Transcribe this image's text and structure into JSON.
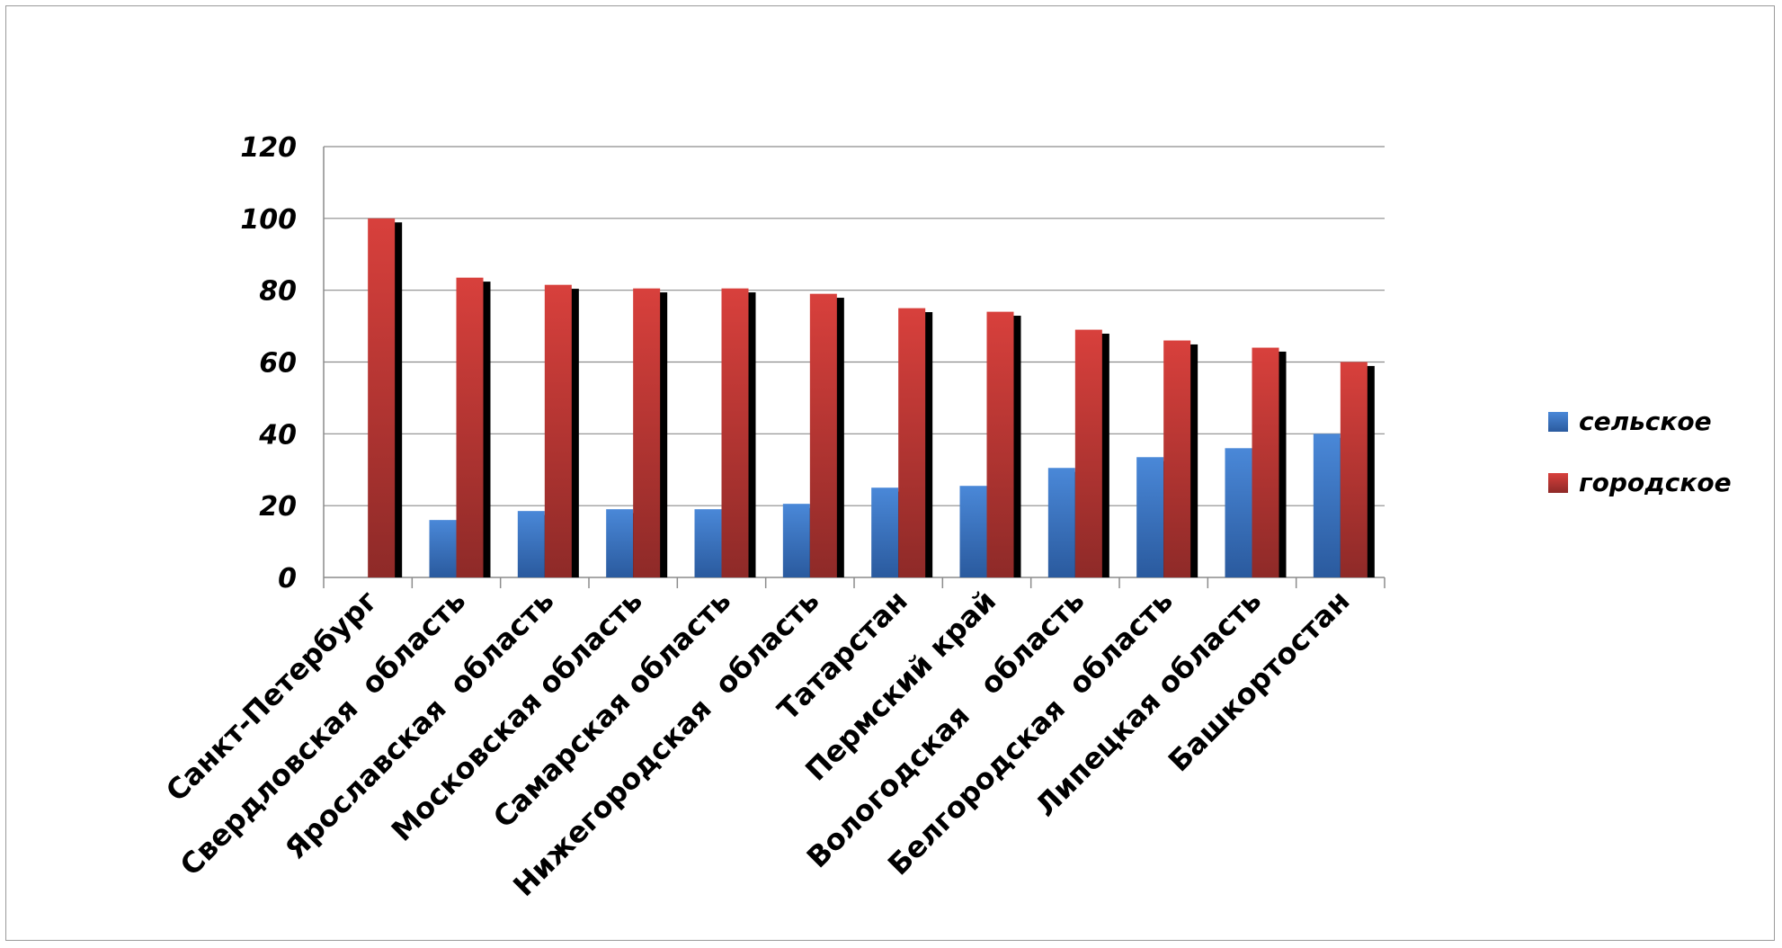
{
  "chart_data": {
    "type": "bar",
    "title": "",
    "xlabel": "",
    "ylabel": "",
    "ylim": [
      0,
      120
    ],
    "yticks": [
      0,
      20,
      40,
      60,
      80,
      100,
      120
    ],
    "grid": true,
    "legend_position": "right",
    "categories": [
      "Санкт-Петербург",
      "Свердловская  область",
      "Ярославская  область",
      "Московская область",
      "Самарская область",
      "Нижегородская  область",
      "Татарстан",
      "Пермский край",
      "Вологодская   область",
      "Белгородская  область",
      "Липецкая область",
      "Башкортостан"
    ],
    "series": [
      {
        "name": "сельское",
        "color": "#3f76c4",
        "values": [
          0,
          16,
          18.5,
          19,
          19,
          20.5,
          25,
          25.5,
          30.5,
          33.5,
          36,
          40
        ]
      },
      {
        "name": "городское",
        "color": "#c93a36",
        "values": [
          100,
          83.5,
          81.5,
          80.5,
          80.5,
          79,
          75,
          74,
          69,
          66,
          64,
          60
        ]
      }
    ]
  }
}
